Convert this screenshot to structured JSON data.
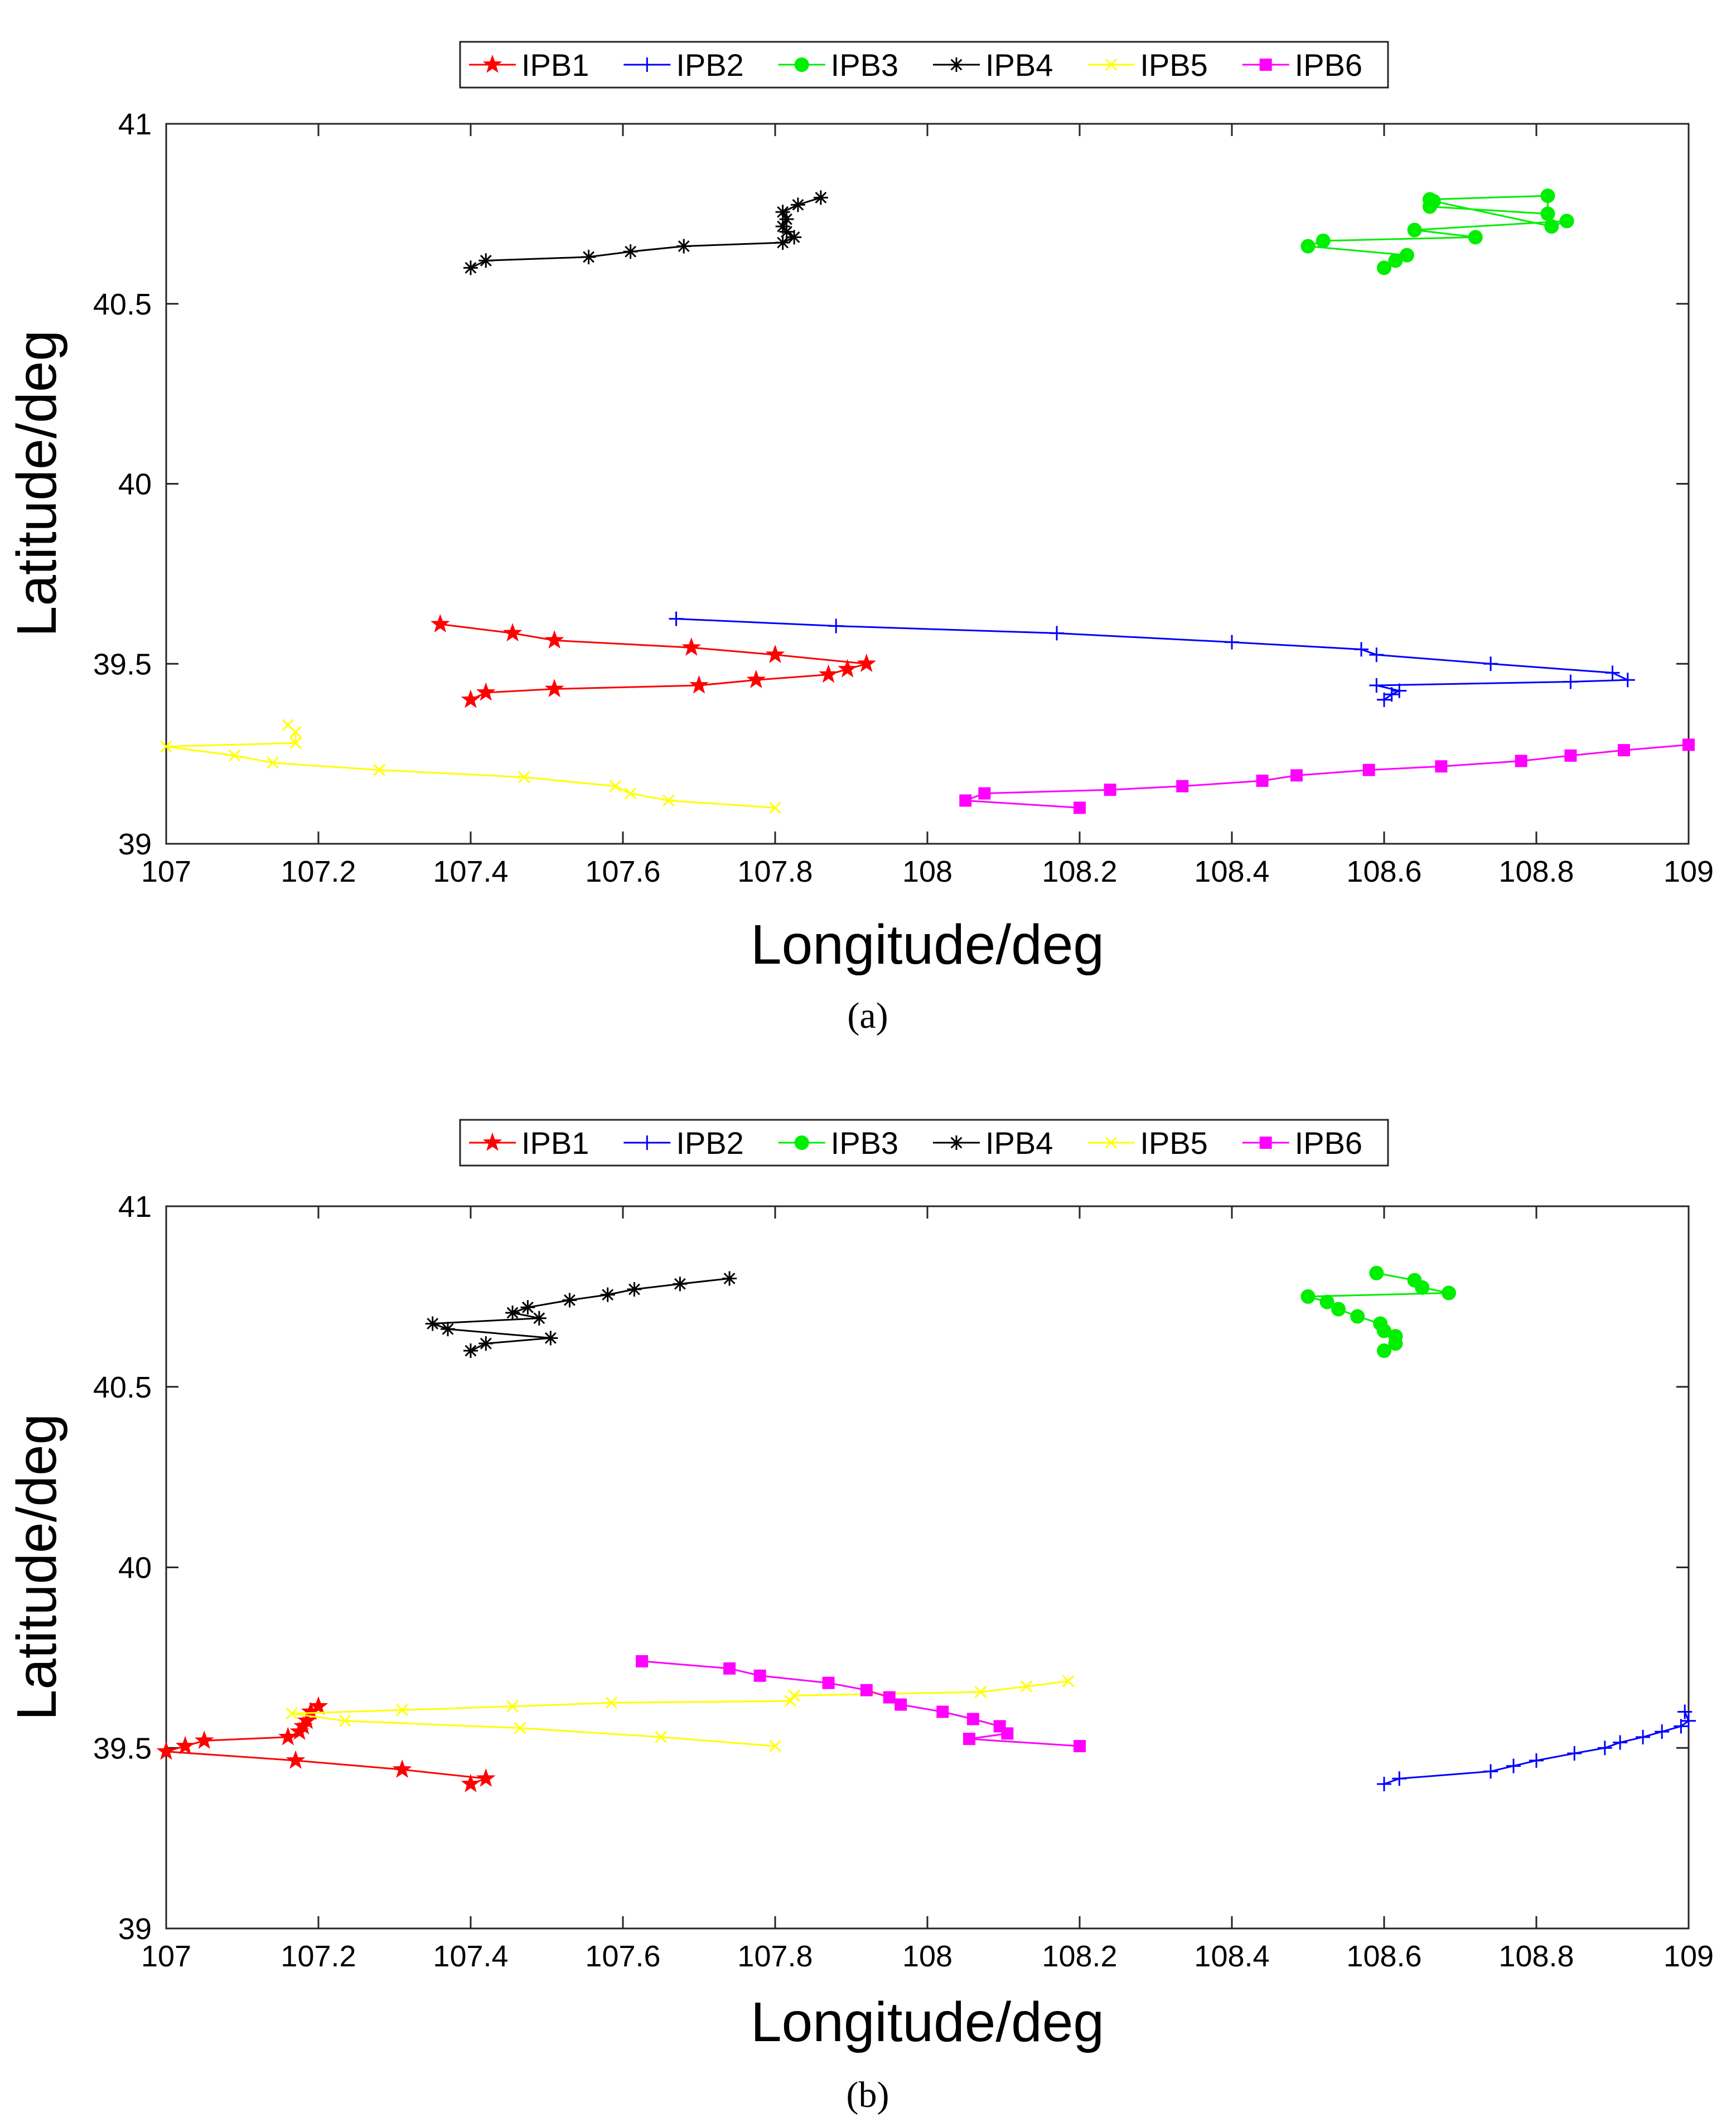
{
  "chart_data": [
    {
      "type": "line",
      "panel_label": "a",
      "title": "",
      "xlabel": "Longitude/deg",
      "ylabel": "Latitude/deg",
      "xlim": [
        107,
        109
      ],
      "ylim": [
        39,
        41
      ],
      "xticks": [
        107,
        107.2,
        107.4,
        107.6,
        107.8,
        108,
        108.2,
        108.4,
        108.6,
        108.8,
        109
      ],
      "yticks": [
        39,
        39.5,
        40,
        40.5,
        41
      ],
      "xtick_labels": [
        "107",
        "107.2",
        "107.4",
        "107.6",
        "107.8",
        "108",
        "108.2",
        "108.4",
        "108.6",
        "108.8",
        "109"
      ],
      "ytick_labels": [
        "39",
        "39.5",
        "40",
        "40.5",
        "41"
      ],
      "grid": false,
      "legend_position": "top-center, horizontal, outside plot",
      "series": [
        {
          "name": "IPB1",
          "color": "#ff0000",
          "marker": "star",
          "x": [
            107.36,
            107.455,
            107.51,
            107.69,
            107.8,
            107.92,
            107.895,
            107.87,
            107.775,
            107.7,
            107.51,
            107.42,
            107.4
          ],
          "y": [
            39.61,
            39.585,
            39.565,
            39.545,
            39.525,
            39.5,
            39.485,
            39.47,
            39.455,
            39.44,
            39.43,
            39.42,
            39.4
          ]
        },
        {
          "name": "IPB2",
          "color": "#0000ff",
          "marker": "plus",
          "x": [
            107.67,
            107.88,
            108.17,
            108.4,
            108.57,
            108.59,
            108.74,
            108.9,
            108.92,
            108.845,
            108.59,
            108.62,
            108.61,
            108.6
          ],
          "y": [
            39.625,
            39.605,
            39.585,
            39.56,
            39.54,
            39.525,
            39.5,
            39.475,
            39.455,
            39.45,
            39.44,
            39.425,
            39.415,
            39.4
          ]
        },
        {
          "name": "IPB3",
          "color": "#00ee00",
          "marker": "circle",
          "x": [
            108.66,
            108.815,
            108.815,
            108.66,
            108.665,
            108.82,
            108.84,
            108.64,
            108.72,
            108.52,
            108.5,
            108.63,
            108.615,
            108.6
          ],
          "y": [
            40.79,
            40.8,
            40.75,
            40.77,
            40.785,
            40.715,
            40.73,
            40.705,
            40.685,
            40.675,
            40.66,
            40.635,
            40.62,
            40.6
          ]
        },
        {
          "name": "IPB4",
          "color": "#000000",
          "marker": "asterisk",
          "x": [
            107.86,
            107.83,
            107.81,
            107.815,
            107.81,
            107.815,
            107.825,
            107.81,
            107.68,
            107.61,
            107.555,
            107.42,
            107.4
          ],
          "y": [
            40.795,
            40.775,
            40.755,
            40.735,
            40.715,
            40.7,
            40.685,
            40.67,
            40.66,
            40.645,
            40.63,
            40.62,
            40.6
          ]
        },
        {
          "name": "IPB5",
          "color": "#ffff00",
          "marker": "x",
          "x": [
            107.16,
            107.17,
            107.17,
            107.0,
            107.09,
            107.14,
            107.28,
            107.47,
            107.59,
            107.61,
            107.66,
            107.8
          ],
          "y": [
            39.33,
            39.31,
            39.28,
            39.27,
            39.245,
            39.225,
            39.205,
            39.185,
            39.16,
            39.14,
            39.12,
            39.1
          ]
        },
        {
          "name": "IPB6",
          "color": "#ff00ff",
          "marker": "square",
          "x": [
            109.0,
            108.915,
            108.845,
            108.78,
            108.675,
            108.58,
            108.485,
            108.44,
            108.335,
            108.24,
            108.075,
            108.05,
            108.2
          ],
          "y": [
            39.275,
            39.26,
            39.245,
            39.23,
            39.215,
            39.205,
            39.19,
            39.175,
            39.16,
            39.15,
            39.14,
            39.12,
            39.1
          ]
        }
      ]
    },
    {
      "type": "line",
      "panel_label": "b",
      "title": "",
      "xlabel": "Longitude/deg",
      "ylabel": "Latitude/deg",
      "xlim": [
        107,
        109
      ],
      "ylim": [
        39,
        41
      ],
      "xticks": [
        107,
        107.2,
        107.4,
        107.6,
        107.8,
        108,
        108.2,
        108.4,
        108.6,
        108.8,
        109
      ],
      "yticks": [
        39,
        39.5,
        40,
        40.5,
        41
      ],
      "xtick_labels": [
        "107",
        "107.2",
        "107.4",
        "107.6",
        "107.8",
        "108",
        "108.2",
        "108.4",
        "108.6",
        "108.8",
        "109"
      ],
      "ytick_labels": [
        "39",
        "39.5",
        "40",
        "40.5",
        "41"
      ],
      "grid": false,
      "legend_position": "top-center, horizontal, outside plot",
      "series": [
        {
          "name": "IPB1",
          "color": "#ff0000",
          "marker": "star",
          "x": [
            107.2,
            107.19,
            107.185,
            107.18,
            107.175,
            107.16,
            107.05,
            107.025,
            107.0,
            107.17,
            107.31,
            107.42,
            107.4
          ],
          "y": [
            39.615,
            39.6,
            39.575,
            39.56,
            39.545,
            39.53,
            39.52,
            39.505,
            39.49,
            39.465,
            39.44,
            39.415,
            39.4
          ]
        },
        {
          "name": "IPB2",
          "color": "#0000ff",
          "marker": "plus",
          "x": [
            108.995,
            109.0,
            108.99,
            108.965,
            108.94,
            108.91,
            108.89,
            108.85,
            108.8,
            108.77,
            108.74,
            108.62,
            108.6
          ],
          "y": [
            39.6,
            39.575,
            39.56,
            39.545,
            39.53,
            39.515,
            39.5,
            39.485,
            39.465,
            39.45,
            39.435,
            39.415,
            39.4
          ]
        },
        {
          "name": "IPB3",
          "color": "#00ee00",
          "marker": "circle",
          "x": [
            108.59,
            108.64,
            108.65,
            108.685,
            108.5,
            108.525,
            108.54,
            108.565,
            108.595,
            108.6,
            108.615,
            108.615,
            108.6
          ],
          "y": [
            40.815,
            40.795,
            40.775,
            40.76,
            40.75,
            40.735,
            40.715,
            40.695,
            40.675,
            40.655,
            40.64,
            40.62,
            40.6
          ]
        },
        {
          "name": "IPB4",
          "color": "#000000",
          "marker": "asterisk",
          "x": [
            107.74,
            107.675,
            107.615,
            107.58,
            107.53,
            107.475,
            107.455,
            107.49,
            107.35,
            107.37,
            107.505,
            107.42,
            107.4
          ],
          "y": [
            40.8,
            40.785,
            40.77,
            40.755,
            40.74,
            40.72,
            40.705,
            40.69,
            40.675,
            40.66,
            40.635,
            40.62,
            40.6
          ]
        },
        {
          "name": "IPB5",
          "color": "#ffff00",
          "marker": "x",
          "x": [
            108.185,
            108.13,
            108.07,
            107.825,
            107.82,
            107.585,
            107.455,
            107.31,
            107.165,
            107.235,
            107.465,
            107.65,
            107.8
          ],
          "y": [
            39.685,
            39.67,
            39.655,
            39.645,
            39.63,
            39.625,
            39.615,
            39.605,
            39.595,
            39.575,
            39.555,
            39.53,
            39.505
          ]
        },
        {
          "name": "IPB6",
          "color": "#ff00ff",
          "marker": "square",
          "x": [
            107.625,
            107.74,
            107.78,
            107.87,
            107.92,
            107.95,
            107.965,
            108.02,
            108.06,
            108.095,
            108.105,
            108.055,
            108.2
          ],
          "y": [
            39.74,
            39.72,
            39.7,
            39.68,
            39.66,
            39.64,
            39.62,
            39.6,
            39.58,
            39.56,
            39.54,
            39.525,
            39.505
          ]
        }
      ]
    }
  ],
  "captions": {
    "a": "(a)",
    "b": "(b)"
  }
}
